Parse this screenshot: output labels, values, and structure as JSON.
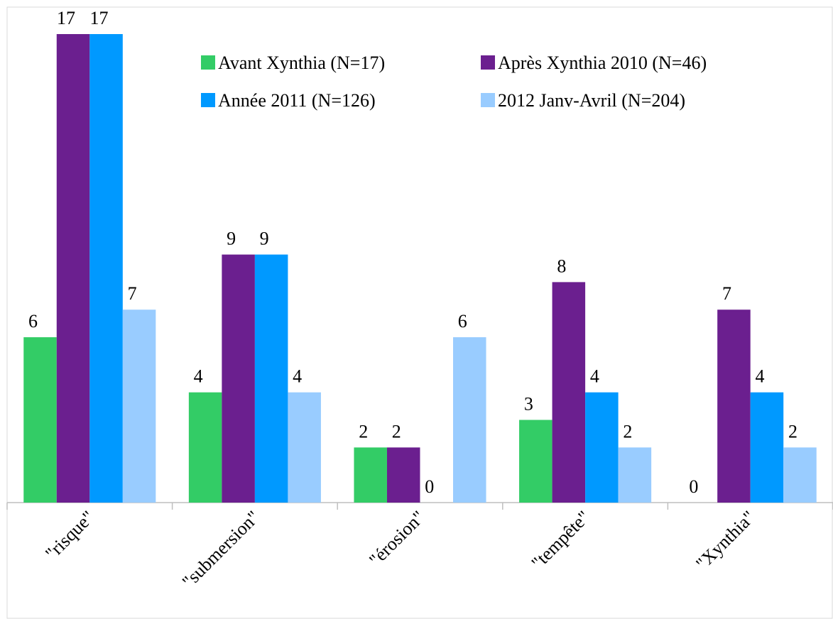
{
  "chart_data": {
    "type": "bar",
    "categories": [
      "\"risque\"",
      "\"submersion\"",
      "\"érosion\"",
      "\"tempête\"",
      "\"Xynthia\""
    ],
    "series": [
      {
        "name": "Avant Xynthia (N=17)",
        "color": "#33cc66",
        "values": [
          6,
          4,
          2,
          3,
          0
        ]
      },
      {
        "name": "Après Xynthia 2010 (N=46)",
        "color": "#6b1f8f",
        "values": [
          17,
          9,
          2,
          8,
          7
        ]
      },
      {
        "name": "Année 2011 (N=126)",
        "color": "#0099ff",
        "values": [
          17,
          9,
          0,
          4,
          4
        ]
      },
      {
        "name": "2012 Janv-Avril (N=204)",
        "color": "#99ccff",
        "values": [
          7,
          4,
          6,
          2,
          2
        ]
      }
    ]
  }
}
